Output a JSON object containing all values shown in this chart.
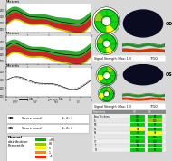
{
  "bg_color": "#d8d8d8",
  "fill_green": "#33aa33",
  "fill_red": "#cc2222",
  "fill_yellow": "#cccc00",
  "fill_green_light": "#88cc44",
  "font_tiny": 2.8,
  "font_small": 3.5,
  "od_score": "1, 2, 3",
  "os_score": "1, 2, 3",
  "normal_colors": [
    "#00aa00",
    "#88cc00",
    "#ffee00",
    "#ff8800",
    "#ff2200"
  ],
  "normal_labels": [
    ">95",
    "80",
    "5",
    "1",
    "<1"
  ],
  "tbl_rows": [
    "Avg Thickness",
    "S",
    "NS",
    "N",
    "NI",
    "I",
    "IT",
    "T",
    "TS"
  ],
  "tbl_od": [
    "100",
    "110",
    "95",
    "88",
    "92",
    "108",
    "115",
    "98",
    "102"
  ],
  "tbl_os": [
    "98",
    "105",
    "97",
    "90",
    "88",
    "102",
    "110",
    "96",
    "99"
  ],
  "tbl_od_colors": [
    "#00cc00",
    "#00cc00",
    "#00cc00",
    "#ffff00",
    "#00cc00",
    "#00cc00",
    "#00cc00",
    "#00cc00",
    "#00cc00"
  ],
  "tbl_os_colors": [
    "#00cc00",
    "#88cc00",
    "#00cc00",
    "#00cc00",
    "#ffff00",
    "#00cc00",
    "#00cc00",
    "#00cc00",
    "#00cc00"
  ],
  "polar_od_colors": [
    "#00cc00",
    "#00cc00",
    "#00cc00",
    "#88cc00",
    "#00cc00",
    "#00cc00",
    "#ffff00",
    "#00cc00"
  ],
  "polar_os_colors": [
    "#00cc00",
    "#88cc00",
    "#00cc00",
    "#00cc00",
    "#ffff00",
    "#00cc00",
    "#00cc00",
    "#00cc00"
  ]
}
